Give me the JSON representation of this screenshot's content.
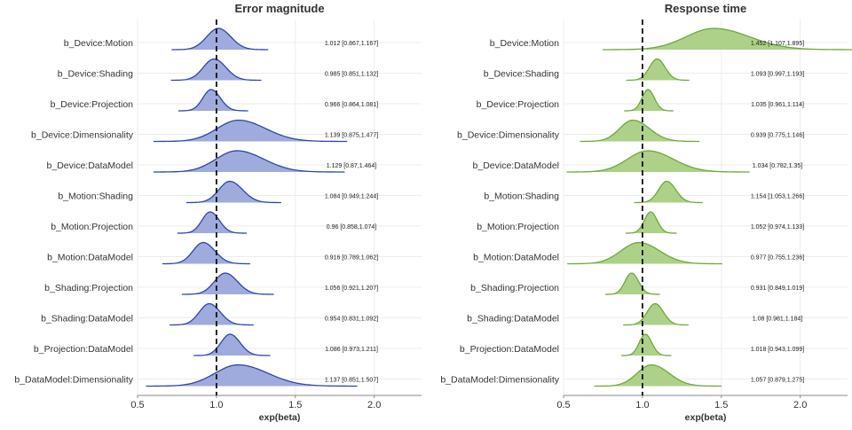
{
  "chart_data": [
    {
      "type": "ridgeline",
      "title": "Error magnitude",
      "xlabel": "exp(beta)",
      "ylabel": "",
      "xlim": [
        0.5,
        2.3
      ],
      "x_ticks": [
        0.5,
        1.0,
        1.5,
        2.0
      ],
      "x_tick_labels": [
        "0.5",
        "1.0",
        "1.5",
        "2.0"
      ],
      "reference_line": 1.0,
      "grid": true,
      "colors": {
        "fill": "#9aa6db",
        "line": "#2f46a8"
      },
      "categories": [
        "b_Device:Motion",
        "b_Device:Shading",
        "b_Device:Projection",
        "b_Device:Dimensionality",
        "b_Device:DataModel",
        "b_Motion:Shading",
        "b_Motion:Projection",
        "b_Motion:DataModel",
        "b_Shading:Projection",
        "b_Shading:DataModel",
        "b_Projection:DataModel",
        "b_DataModel:Dimensionality"
      ],
      "estimates": [
        {
          "mean": 1.012,
          "low": 0.867,
          "high": 1.167,
          "label": "1.012 [0.867,1.167]"
        },
        {
          "mean": 0.985,
          "low": 0.851,
          "high": 1.132,
          "label": "0.985 [0.851,1.132]"
        },
        {
          "mean": 0.966,
          "low": 0.864,
          "high": 1.081,
          "label": "0.966 [0.864,1.081]"
        },
        {
          "mean": 1.139,
          "low": 0.875,
          "high": 1.477,
          "label": "1.139 [0.875,1.477]"
        },
        {
          "mean": 1.129,
          "low": 0.87,
          "high": 1.464,
          "label": "1.129 [0.87,1.464]"
        },
        {
          "mean": 1.084,
          "low": 0.949,
          "high": 1.244,
          "label": "1.084 [0.949,1.244]"
        },
        {
          "mean": 0.96,
          "low": 0.858,
          "high": 1.074,
          "label": "0.96 [0.858,1.074]"
        },
        {
          "mean": 0.916,
          "low": 0.789,
          "high": 1.062,
          "label": "0.916 [0.789,1.062]"
        },
        {
          "mean": 1.056,
          "low": 0.921,
          "high": 1.207,
          "label": "1.056 [0.921,1.207]"
        },
        {
          "mean": 0.954,
          "low": 0.831,
          "high": 1.092,
          "label": "0.954 [0.831,1.092]"
        },
        {
          "mean": 1.086,
          "low": 0.973,
          "high": 1.211,
          "label": "1.086 [0.973,1.211]"
        },
        {
          "mean": 1.137,
          "low": 0.851,
          "high": 1.507,
          "label": "1.137 [0.851,1.507]"
        }
      ]
    },
    {
      "type": "ridgeline",
      "title": "Response time",
      "xlabel": "exp(beta)",
      "ylabel": "",
      "xlim": [
        0.5,
        2.3
      ],
      "x_ticks": [
        0.5,
        1.0,
        1.5,
        2.0
      ],
      "x_tick_labels": [
        "0.5",
        "1.0",
        "1.5",
        "2.0"
      ],
      "reference_line": 1.0,
      "grid": true,
      "colors": {
        "fill": "#a9cf82",
        "line": "#6fa83a"
      },
      "categories": [
        "b_Device:Motion",
        "b_Device:Shading",
        "b_Device:Projection",
        "b_Device:Dimensionality",
        "b_Device:DataModel",
        "b_Motion:Shading",
        "b_Motion:Projection",
        "b_Motion:DataModel",
        "b_Shading:Projection",
        "b_Shading:DataModel",
        "b_Projection:DataModel",
        "b_DataModel:Dimensionality"
      ],
      "estimates": [
        {
          "mean": 1.452,
          "low": 1.107,
          "high": 1.895,
          "label": "1.452 [1.107,1.895]"
        },
        {
          "mean": 1.093,
          "low": 0.997,
          "high": 1.193,
          "label": "1.093 [0.997,1.193]"
        },
        {
          "mean": 1.035,
          "low": 0.961,
          "high": 1.114,
          "label": "1.035 [0.961,1.114]"
        },
        {
          "mean": 0.939,
          "low": 0.775,
          "high": 1.146,
          "label": "0.939 [0.775,1.146]"
        },
        {
          "mean": 1.034,
          "low": 0.782,
          "high": 1.35,
          "label": "1.034 [0.782,1.35]"
        },
        {
          "mean": 1.154,
          "low": 1.053,
          "high": 1.266,
          "label": "1.154 [1.053,1.266]"
        },
        {
          "mean": 1.052,
          "low": 0.974,
          "high": 1.133,
          "label": "1.052 [0.974,1.133]"
        },
        {
          "mean": 0.977,
          "low": 0.755,
          "high": 1.236,
          "label": "0.977 [0.755,1.236]"
        },
        {
          "mean": 0.931,
          "low": 0.849,
          "high": 1.019,
          "label": "0.931 [0.849,1.019]"
        },
        {
          "mean": 1.08,
          "low": 0.981,
          "high": 1.184,
          "label": "1.08 [0.981,1.184]"
        },
        {
          "mean": 1.018,
          "low": 0.943,
          "high": 1.099,
          "label": "1.018 [0.943,1.099]"
        },
        {
          "mean": 1.057,
          "low": 0.879,
          "high": 1.275,
          "label": "1.057 [0.879,1.275]"
        }
      ]
    }
  ]
}
